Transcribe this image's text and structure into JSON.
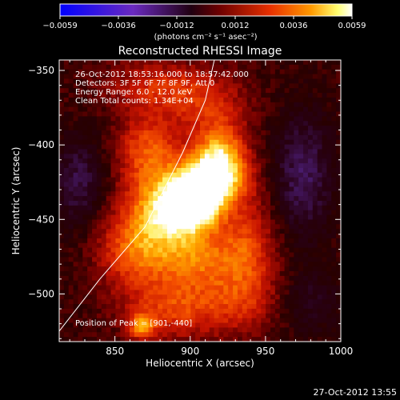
{
  "colorbar": {
    "tick_labels": [
      "−0.0059",
      "−0.0036",
      "−0.0012",
      "0.0012",
      "0.0036",
      "0.0059"
    ],
    "unit_label": "(photons cm⁻² s⁻¹ asec⁻²)",
    "range": [
      -0.0059,
      0.0059
    ]
  },
  "chart_data": {
    "type": "heatmap",
    "title": "Reconstructed RHESSI Image",
    "xlabel": "Heliocentric X (arcsec)",
    "ylabel": "Heliocentric Y (arcsec)",
    "xlim": [
      813,
      1000
    ],
    "ylim": [
      -532,
      -343
    ],
    "xticks": [
      850,
      900,
      950,
      1000
    ],
    "xtick_labels": [
      "850",
      "900",
      "950",
      "1000"
    ],
    "yticks": [
      -350,
      -400,
      -450,
      -500
    ],
    "ytick_labels": [
      "−350",
      "−400",
      "−450",
      "−500"
    ],
    "peak": [
      901,
      -440
    ],
    "colormap": [
      "#0000ff",
      "#5a2aa0",
      "#2a0010",
      "#8a0000",
      "#e83000",
      "#ff9a00",
      "#ffff80",
      "#ffffff"
    ],
    "limb_curve": [
      [
        813,
        -525
      ],
      [
        840,
        -490
      ],
      [
        870,
        -455
      ],
      [
        895,
        -405
      ],
      [
        910,
        -370
      ],
      [
        916,
        -343
      ]
    ],
    "annotations": [
      "26-Oct-2012 18:53:16.000 to 18:57:42.000",
      "Detectors: 3F 5F 6F 7F 8F 9F, Att 0",
      "Energy Range: 6.0 - 12.0 keV",
      "Clean    Total counts: 1.34E+04"
    ],
    "peak_label": "Position of Peak = [901,-440]",
    "sources": [
      {
        "x": 901,
        "y": -440,
        "amp": 1.0,
        "sx": 12,
        "sy": 12
      },
      {
        "x": 912,
        "y": -425,
        "amp": 0.75,
        "sx": 18,
        "sy": 14
      },
      {
        "x": 920,
        "y": -408,
        "amp": 0.65,
        "sx": 12,
        "sy": 16
      },
      {
        "x": 880,
        "y": -445,
        "amp": 0.6,
        "sx": 16,
        "sy": 16
      },
      {
        "x": 900,
        "y": -475,
        "amp": 0.55,
        "sx": 22,
        "sy": 16
      },
      {
        "x": 872,
        "y": -405,
        "amp": 0.5,
        "sx": 14,
        "sy": 18
      },
      {
        "x": 860,
        "y": -470,
        "amp": 0.42,
        "sx": 16,
        "sy": 18
      },
      {
        "x": 890,
        "y": -510,
        "amp": 0.42,
        "sx": 24,
        "sy": 14
      },
      {
        "x": 868,
        "y": -522,
        "amp": 0.55,
        "sx": 6,
        "sy": 6
      },
      {
        "x": 938,
        "y": -470,
        "amp": 0.38,
        "sx": 14,
        "sy": 22
      },
      {
        "x": 910,
        "y": -375,
        "amp": 0.28,
        "sx": 20,
        "sy": 14
      },
      {
        "x": 880,
        "y": -360,
        "amp": 0.32,
        "sx": 26,
        "sy": 12
      },
      {
        "x": 935,
        "y": -505,
        "amp": 0.26,
        "sx": 18,
        "sy": 16
      },
      {
        "x": 975,
        "y": -420,
        "amp": -0.35,
        "sx": 14,
        "sy": 30
      },
      {
        "x": 825,
        "y": -425,
        "amp": -0.3,
        "sx": 12,
        "sy": 22
      },
      {
        "x": 980,
        "y": -505,
        "amp": -0.18,
        "sx": 16,
        "sy": 16
      }
    ],
    "background": 0.04
  },
  "footer": {
    "timestamp": "27-Oct-2012 13:55"
  }
}
